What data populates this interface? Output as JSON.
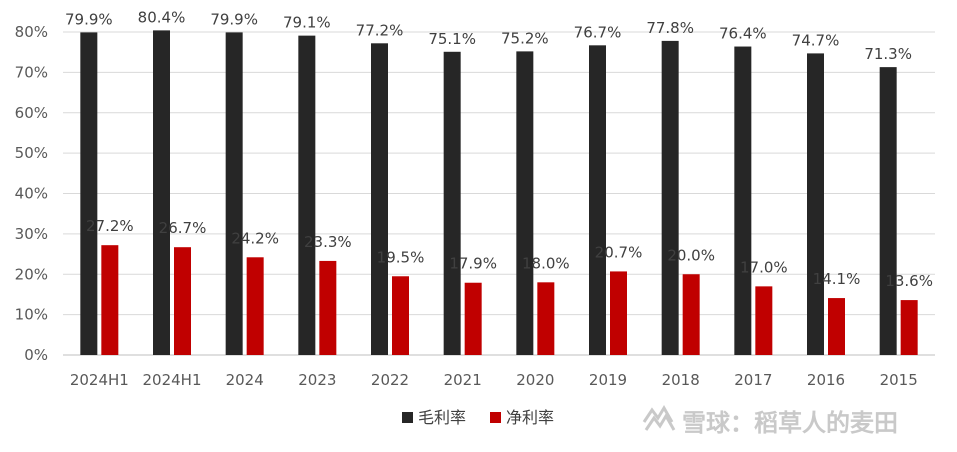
{
  "chart_data": {
    "type": "bar",
    "categories": [
      "2024H1",
      "2024H1",
      "2024",
      "2023",
      "2022",
      "2021",
      "2020",
      "2019",
      "2018",
      "2017",
      "2016",
      "2015"
    ],
    "series": [
      {
        "name": "毛利率",
        "color": "#262626",
        "values": [
          79.9,
          80.4,
          79.9,
          79.1,
          77.2,
          75.1,
          75.2,
          76.7,
          77.8,
          76.4,
          74.7,
          71.3
        ],
        "labels": [
          "79.9%",
          "80.4%",
          "79.9%",
          "79.1%",
          "77.2%",
          "75.1%",
          "75.2%",
          "76.7%",
          "77.8%",
          "76.4%",
          "74.7%",
          "71.3%"
        ]
      },
      {
        "name": "净利率",
        "color": "#c00000",
        "values": [
          27.2,
          26.7,
          24.2,
          23.3,
          19.5,
          17.9,
          18.0,
          20.7,
          20.0,
          17.0,
          14.1,
          13.6
        ],
        "labels": [
          "27.2%",
          "26.7%",
          "24.2%",
          "23.3%",
          "19.5%",
          "17.9%",
          "18.0%",
          "20.7%",
          "20.0%",
          "17.0%",
          "14.1%",
          "13.6%"
        ]
      }
    ],
    "y_ticks": [
      "0%",
      "10%",
      "20%",
      "30%",
      "40%",
      "50%",
      "60%",
      "70%",
      "80%"
    ],
    "ylim": [
      0,
      80
    ],
    "grid": true,
    "legend": "bottom-center",
    "title": "",
    "xlabel": "",
    "ylabel": ""
  },
  "watermark": {
    "text": "雪球：稻草人的麦田",
    "icon": "snowball-logo-icon"
  }
}
